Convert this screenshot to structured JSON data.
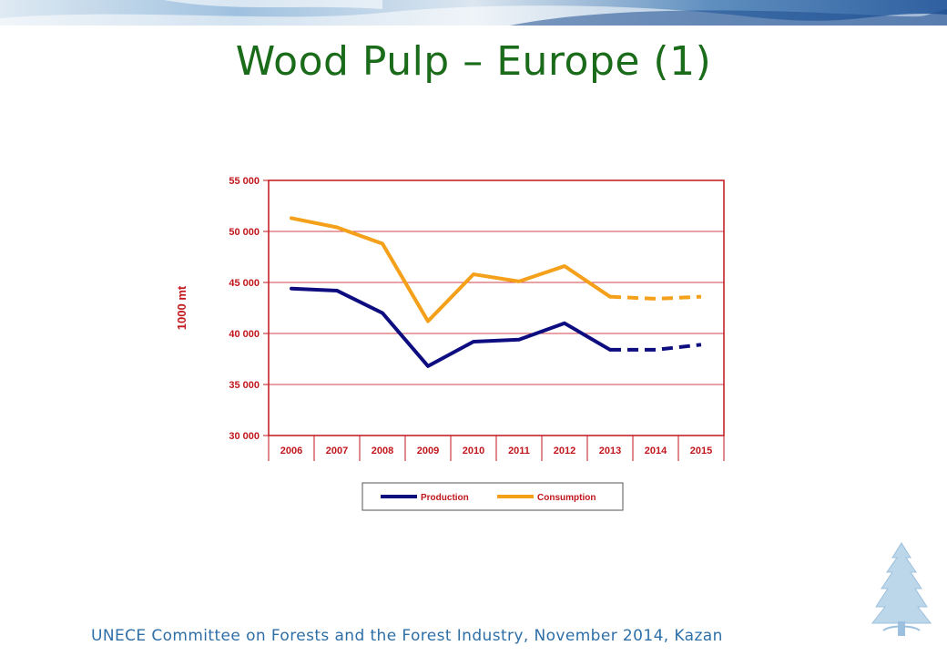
{
  "slide": {
    "title": "Wood Pulp – Europe (1)",
    "footer": "UNECE Committee on Forests and the Forest Industry, November 2014, Kazan"
  },
  "decor": {
    "banner": "banner-mosaic-image",
    "logo": "tree-logo-icon"
  },
  "colors": {
    "title": "#1a6b1a",
    "axis": "#c0161c",
    "production": "#0d0d80",
    "consumption": "#f5a01a",
    "footer": "#2e6fa7"
  },
  "chart_data": {
    "type": "line",
    "title": "",
    "xlabel": "",
    "ylabel": "1000 mt",
    "categories": [
      "2006",
      "2007",
      "2008",
      "2009",
      "2010",
      "2011",
      "2012",
      "2013",
      "2014",
      "2015"
    ],
    "y_ticks": [
      "30 000",
      "35 000",
      "40 000",
      "45 000",
      "50 000",
      "55 000"
    ],
    "ylim": [
      30000,
      55000
    ],
    "grid": true,
    "legend_position": "bottom",
    "forecast_from": "2013",
    "series": [
      {
        "name": "Production",
        "values": [
          44400,
          44200,
          42000,
          36800,
          39200,
          39400,
          41000,
          38400,
          38400,
          38900
        ]
      },
      {
        "name": "Consumption",
        "values": [
          51300,
          50400,
          48800,
          41200,
          45800,
          45100,
          46600,
          43600,
          43400,
          43600
        ]
      }
    ]
  }
}
